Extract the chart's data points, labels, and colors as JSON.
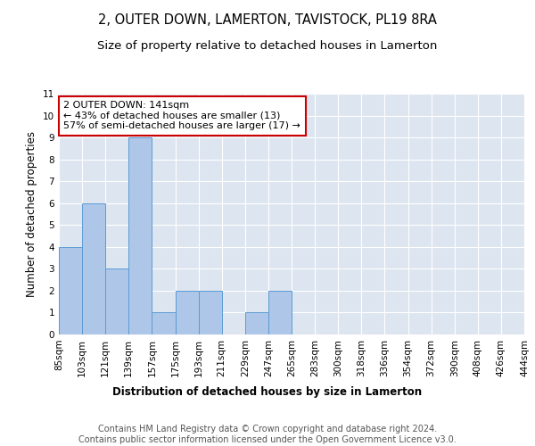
{
  "title": "2, OUTER DOWN, LAMERTON, TAVISTOCK, PL19 8RA",
  "subtitle": "Size of property relative to detached houses in Lamerton",
  "xlabel": "Distribution of detached houses by size in Lamerton",
  "ylabel": "Number of detached properties",
  "bin_labels": [
    "85sqm",
    "103sqm",
    "121sqm",
    "139sqm",
    "157sqm",
    "175sqm",
    "193sqm",
    "211sqm",
    "229sqm",
    "247sqm",
    "265sqm",
    "283sqm",
    "300sqm",
    "318sqm",
    "336sqm",
    "354sqm",
    "372sqm",
    "390sqm",
    "408sqm",
    "426sqm",
    "444sqm"
  ],
  "bar_values": [
    4,
    6,
    3,
    9,
    1,
    2,
    2,
    0,
    1,
    2,
    0,
    0,
    0,
    0,
    0,
    0,
    0,
    0,
    0,
    0
  ],
  "bar_color": "#aec6e8",
  "bar_edge_color": "#5b9bd5",
  "background_color": "#dde5f0",
  "grid_color": "#ffffff",
  "ylim": [
    0,
    11
  ],
  "yticks": [
    0,
    1,
    2,
    3,
    4,
    5,
    6,
    7,
    8,
    9,
    10,
    11
  ],
  "annotation_box_text": "2 OUTER DOWN: 141sqm\n← 43% of detached houses are smaller (13)\n57% of semi-detached houses are larger (17) →",
  "annotation_box_color": "#cc0000",
  "footer_text": "Contains HM Land Registry data © Crown copyright and database right 2024.\nContains public sector information licensed under the Open Government Licence v3.0.",
  "title_fontsize": 10.5,
  "subtitle_fontsize": 9.5,
  "axis_label_fontsize": 8.5,
  "tick_fontsize": 7.5,
  "annotation_fontsize": 8,
  "footer_fontsize": 7
}
